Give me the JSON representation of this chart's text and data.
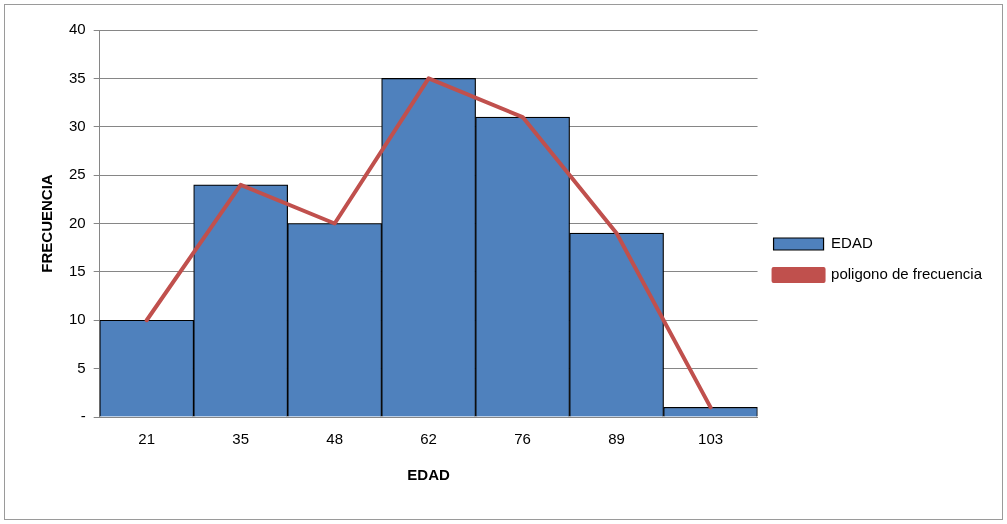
{
  "chart_data": {
    "type": "bar",
    "xlabel": "EDAD",
    "ylabel": "FRECUENCIA",
    "categories": [
      "21",
      "35",
      "48",
      "62",
      "76",
      "89",
      "103"
    ],
    "series": [
      {
        "name": "EDAD",
        "color": "#4f81bd",
        "values": [
          10,
          24,
          20,
          35,
          31,
          19,
          1
        ]
      },
      {
        "name": "poligono de frecuencia",
        "type": "line",
        "color": "#c0504d",
        "values": [
          10,
          24,
          20,
          35,
          31,
          19,
          1
        ]
      }
    ],
    "ylim": [
      0,
      40
    ],
    "yticks": [
      {
        "value": 0,
        "label": "-"
      },
      5,
      10,
      15,
      20,
      25,
      30,
      35,
      40
    ],
    "grid": "y",
    "legend": "right",
    "marker": "none"
  }
}
